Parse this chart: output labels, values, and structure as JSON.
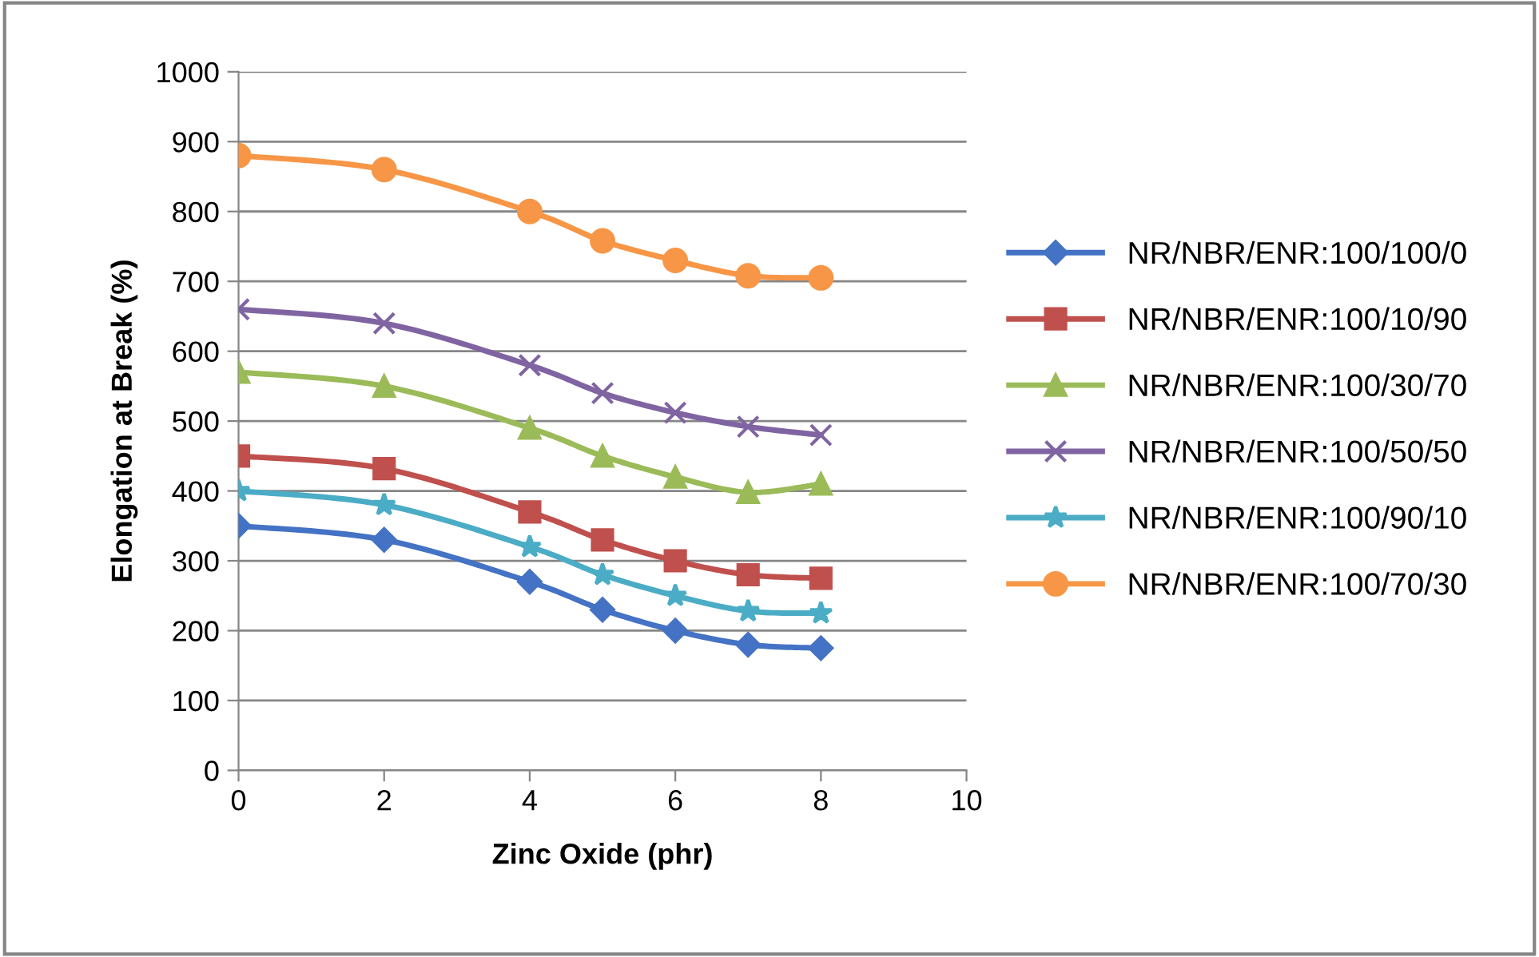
{
  "chart_data": {
    "type": "line",
    "xlabel": "Zinc Oxide (phr)",
    "ylabel": "Elongation at Break (%)",
    "x": [
      0,
      2,
      4,
      5,
      6,
      7,
      8
    ],
    "xlim": [
      0,
      10
    ],
    "xticks": [
      0,
      2,
      4,
      6,
      8,
      10
    ],
    "ylim": [
      0,
      1000
    ],
    "yticks": [
      0,
      100,
      200,
      300,
      400,
      500,
      600,
      700,
      800,
      900,
      1000
    ],
    "grid": "y",
    "legend": "right",
    "line_style": "solid",
    "series": [
      {
        "name": "NR/NBR/ENR:100/100/0",
        "color": "#4472c4",
        "marker": "diamond",
        "values": [
          350,
          330,
          270,
          230,
          200,
          180,
          175
        ]
      },
      {
        "name": "NR/NBR/ENR:100/10/90",
        "color": "#c0504d",
        "marker": "square",
        "values": [
          450,
          432,
          370,
          330,
          300,
          280,
          275
        ]
      },
      {
        "name": "NR/NBR/ENR:100/30/70",
        "color": "#9bbb59",
        "marker": "triangle",
        "values": [
          570,
          550,
          490,
          450,
          420,
          398,
          410
        ]
      },
      {
        "name": "NR/NBR/ENR:100/50/50",
        "color": "#8064a2",
        "marker": "cross",
        "values": [
          660,
          640,
          580,
          540,
          512,
          492,
          480
        ]
      },
      {
        "name": "NR/NBR/ENR:100/90/10",
        "color": "#4bacc6",
        "marker": "star",
        "values": [
          400,
          380,
          320,
          280,
          250,
          228,
          225
        ]
      },
      {
        "name": "NR/NBR/ENR:100/70/30",
        "color": "#f79646",
        "marker": "circle",
        "values": [
          880,
          860,
          800,
          758,
          730,
          708,
          705
        ]
      }
    ]
  }
}
